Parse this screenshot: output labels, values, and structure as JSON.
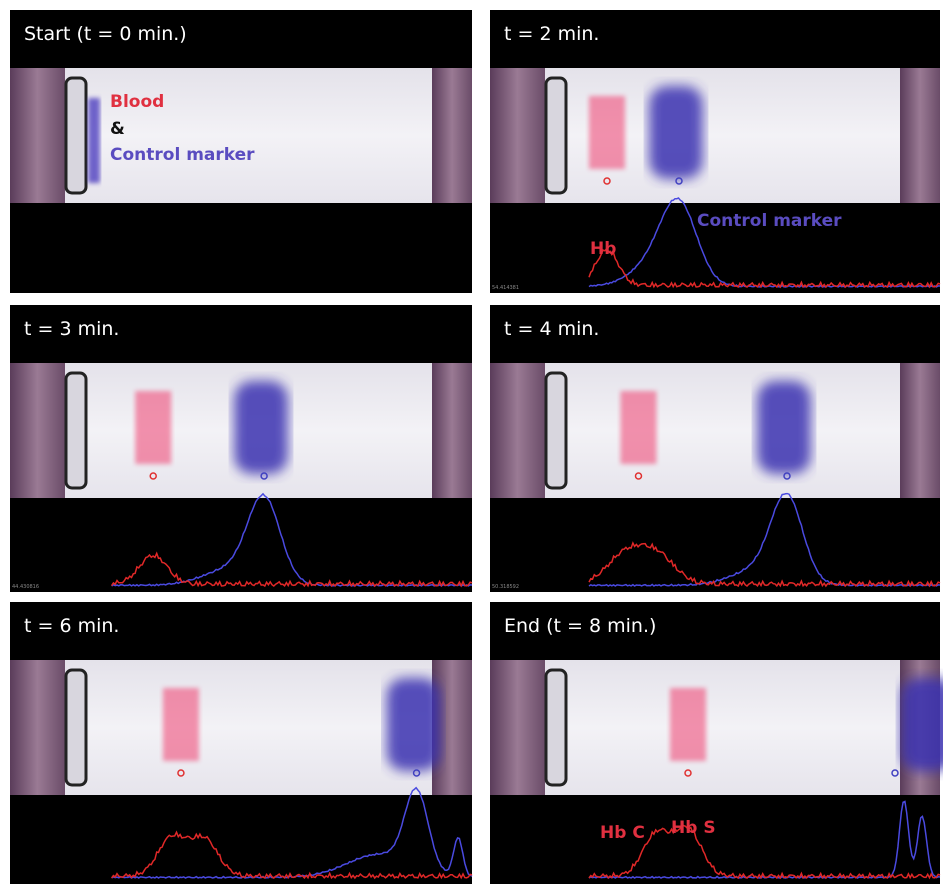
{
  "panels": [
    {
      "title": "Start (t = 0 min.)",
      "labels": [
        "Blood",
        "&",
        "Control marker"
      ]
    },
    {
      "title": "t = 2 min.",
      "labels": [
        "Hb",
        "Control marker"
      ],
      "readout": "54.414381"
    },
    {
      "title": "t = 3 min.",
      "readout": "44.430816"
    },
    {
      "title": "t = 4 min.",
      "readout": "50.318592"
    },
    {
      "title": "t = 6 min."
    },
    {
      "title": "End (t = 8 min.)",
      "labels": [
        "Hb C",
        "Hb S"
      ]
    }
  ]
}
